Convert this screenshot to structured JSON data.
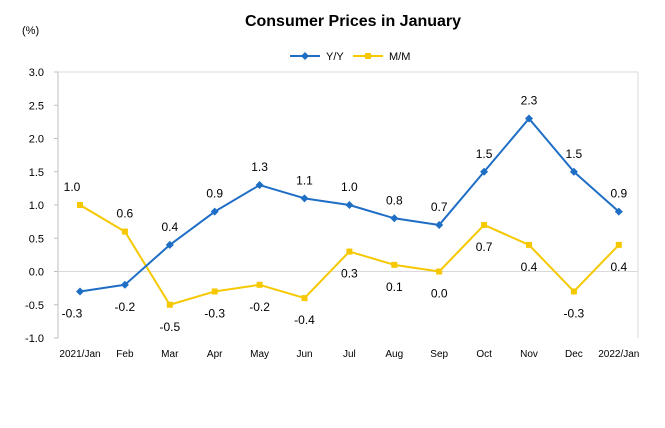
{
  "chart_data": {
    "type": "line",
    "title": "Consumer Prices in January",
    "unit_label": "(%)",
    "categories": [
      "2021/Jan",
      "Feb",
      "Mar",
      "Apr",
      "May",
      "Jun",
      "Jul",
      "Aug",
      "Sep",
      "Oct",
      "Nov",
      "Dec",
      "2022/Jan"
    ],
    "ylim": [
      -1.0,
      3.0
    ],
    "yticks": [
      "3.0",
      "2.5",
      "2.0",
      "1.5",
      "1.0",
      "0.5",
      "0.0",
      "-0.5",
      "-1.0"
    ],
    "ytick_values": [
      3.0,
      2.5,
      2.0,
      1.5,
      1.0,
      0.5,
      0.0,
      -0.5,
      -1.0
    ],
    "grid": false,
    "legend_position": "top-center",
    "series": [
      {
        "name": "Y/Y",
        "color": "#1F6EC6",
        "marker": "diamond",
        "values": [
          -0.3,
          -0.2,
          0.4,
          0.9,
          1.3,
          1.1,
          1.0,
          0.8,
          0.7,
          1.5,
          2.3,
          1.5,
          0.9
        ],
        "labels": [
          "-0.3",
          "-0.2",
          "0.4",
          "0.9",
          "1.3",
          "1.1",
          "1.0",
          "0.8",
          "0.7",
          "1.5",
          "2.3",
          "1.5",
          "0.9"
        ]
      },
      {
        "name": "M/M",
        "color": "#F5C800",
        "marker": "square",
        "values": [
          1.0,
          0.6,
          -0.5,
          -0.3,
          -0.2,
          -0.4,
          0.3,
          0.1,
          0.0,
          0.7,
          0.4,
          -0.3,
          0.4
        ],
        "labels": [
          "1.0",
          "0.6",
          "-0.5",
          "-0.3",
          "-0.2",
          "-0.4",
          "0.3",
          "0.1",
          "0.0",
          "0.7",
          "0.4",
          "-0.3",
          "0.4"
        ]
      }
    ]
  }
}
